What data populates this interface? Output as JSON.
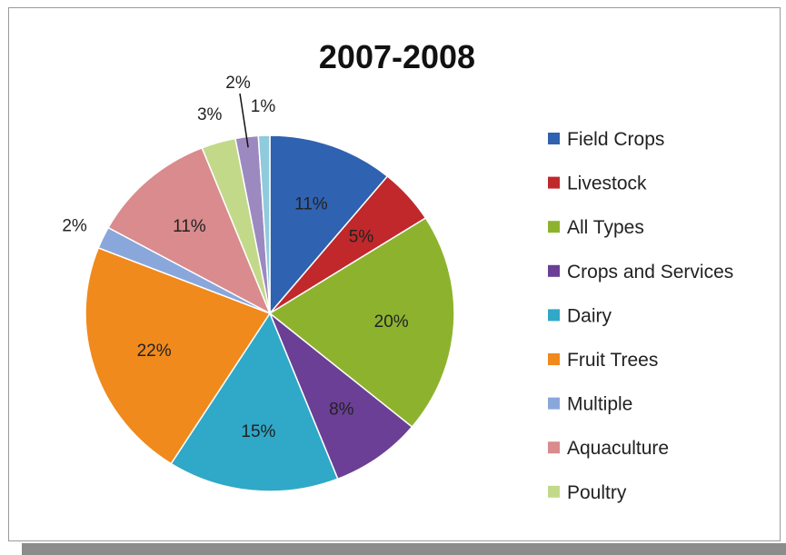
{
  "chart_data": {
    "type": "pie",
    "title": "2007-2008",
    "legend_position": "right",
    "slices": [
      {
        "label": "Field Crops",
        "value": 11,
        "display": "11%",
        "color": "#2f62b0"
      },
      {
        "label": "Livestock",
        "value": 5,
        "display": "5%",
        "color": "#c0282b"
      },
      {
        "label": "All Types",
        "value": 20,
        "display": "20%",
        "color": "#8db32e"
      },
      {
        "label": "Crops and Services",
        "value": 8,
        "display": "8%",
        "color": "#6a3f95"
      },
      {
        "label": "Dairy",
        "value": 15,
        "display": "15%",
        "color": "#30a8c8"
      },
      {
        "label": "Fruit Trees",
        "value": 22,
        "display": "22%",
        "color": "#f08a1c"
      },
      {
        "label": "Multiple",
        "value": 2,
        "display": "2%",
        "color": "#8aa7dc"
      },
      {
        "label": "Aquaculture",
        "value": 11,
        "display": "11%",
        "color": "#d98b8d"
      },
      {
        "label": "Poultry",
        "value": 3,
        "display": "3%",
        "color": "#c3d98a"
      },
      {
        "label": "",
        "value": 2,
        "display": "2%",
        "color": "#9c89c0"
      },
      {
        "label": "",
        "value": 1,
        "display": "1%",
        "color": "#8fcbdc"
      }
    ]
  }
}
